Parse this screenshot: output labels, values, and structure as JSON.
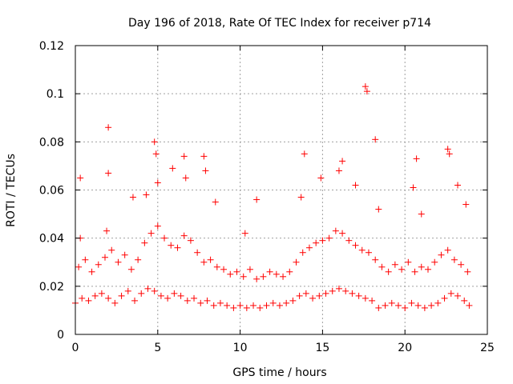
{
  "chart_data": {
    "type": "scatter",
    "title": "Day 196 of 2018, Rate Of TEC Index for receiver p714",
    "xlabel": "GPS time / hours",
    "ylabel": "ROTI / TECUs",
    "xlim": [
      0,
      25
    ],
    "ylim": [
      0,
      0.12
    ],
    "grid": true,
    "marker": "+",
    "color": "#ff0000",
    "x_ticks": [
      0,
      5,
      10,
      15,
      20,
      25
    ],
    "x_tick_labels": [
      "0",
      "5",
      "10",
      "15",
      "20",
      "25"
    ],
    "y_ticks": [
      0,
      0.02,
      0.04,
      0.06,
      0.08,
      0.1,
      0.12
    ],
    "y_tick_labels": [
      "0",
      "0.02",
      "0.04",
      "0.06",
      "0.08",
      "0.1",
      "0.12"
    ],
    "series": [
      {
        "name": "ROTI",
        "x": [
          0.0,
          0.4,
          0.8,
          1.2,
          1.6,
          2.0,
          2.4,
          2.8,
          3.2,
          3.6,
          4.0,
          4.4,
          4.8,
          5.2,
          5.6,
          6.0,
          6.4,
          6.8,
          7.2,
          7.6,
          8.0,
          8.4,
          8.8,
          9.2,
          9.6,
          10.0,
          10.4,
          10.8,
          11.2,
          11.6,
          12.0,
          12.4,
          12.8,
          13.2,
          13.6,
          14.0,
          14.4,
          14.8,
          15.2,
          15.6,
          16.0,
          16.4,
          16.8,
          17.2,
          17.6,
          18.0,
          18.4,
          18.8,
          19.2,
          19.6,
          20.0,
          20.4,
          20.8,
          21.2,
          21.6,
          22.0,
          22.4,
          22.8,
          23.2,
          23.6,
          23.9,
          0.2,
          0.6,
          1.0,
          1.4,
          1.8,
          2.2,
          2.6,
          3.0,
          3.4,
          3.8,
          4.2,
          4.6,
          5.0,
          5.4,
          5.8,
          6.2,
          6.6,
          7.0,
          7.4,
          7.8,
          8.2,
          8.6,
          9.0,
          9.4,
          9.8,
          10.2,
          10.6,
          11.0,
          11.4,
          11.8,
          12.2,
          12.6,
          13.0,
          13.4,
          13.8,
          14.2,
          14.6,
          15.0,
          15.4,
          15.8,
          16.2,
          16.6,
          17.0,
          17.4,
          17.8,
          18.2,
          18.6,
          19.0,
          19.4,
          19.8,
          20.2,
          20.6,
          21.0,
          21.4,
          21.8,
          22.2,
          22.6,
          23.0,
          23.4,
          23.8,
          0.3,
          2.0,
          2.0,
          4.8,
          4.9,
          5.9,
          6.6,
          7.8,
          7.9,
          13.9,
          16.2,
          17.6,
          17.7,
          18.2,
          20.7,
          22.6,
          22.7,
          23.2,
          0.3,
          1.9,
          3.5,
          4.3,
          5.0,
          6.7,
          8.5,
          10.3,
          11.0,
          13.7,
          14.9,
          16.0,
          17.0,
          18.4,
          20.5,
          21.0,
          23.7
        ],
        "y": [
          0.013,
          0.015,
          0.014,
          0.016,
          0.017,
          0.015,
          0.013,
          0.016,
          0.018,
          0.014,
          0.017,
          0.019,
          0.018,
          0.016,
          0.015,
          0.017,
          0.016,
          0.014,
          0.015,
          0.013,
          0.014,
          0.012,
          0.013,
          0.012,
          0.011,
          0.012,
          0.011,
          0.012,
          0.011,
          0.012,
          0.013,
          0.012,
          0.013,
          0.014,
          0.016,
          0.017,
          0.015,
          0.016,
          0.017,
          0.018,
          0.019,
          0.018,
          0.017,
          0.016,
          0.015,
          0.014,
          0.011,
          0.012,
          0.013,
          0.012,
          0.011,
          0.013,
          0.012,
          0.011,
          0.012,
          0.013,
          0.015,
          0.017,
          0.016,
          0.014,
          0.012,
          0.028,
          0.031,
          0.026,
          0.029,
          0.032,
          0.035,
          0.03,
          0.033,
          0.027,
          0.031,
          0.038,
          0.042,
          0.045,
          0.04,
          0.037,
          0.036,
          0.041,
          0.039,
          0.034,
          0.03,
          0.031,
          0.028,
          0.027,
          0.025,
          0.026,
          0.024,
          0.027,
          0.023,
          0.024,
          0.026,
          0.025,
          0.024,
          0.026,
          0.03,
          0.034,
          0.036,
          0.038,
          0.039,
          0.04,
          0.043,
          0.042,
          0.039,
          0.037,
          0.035,
          0.034,
          0.031,
          0.028,
          0.026,
          0.029,
          0.027,
          0.03,
          0.026,
          0.028,
          0.027,
          0.03,
          0.033,
          0.035,
          0.031,
          0.029,
          0.026,
          0.065,
          0.086,
          0.067,
          0.08,
          0.075,
          0.069,
          0.074,
          0.074,
          0.068,
          0.075,
          0.072,
          0.103,
          0.101,
          0.081,
          0.073,
          0.077,
          0.075,
          0.062,
          0.04,
          0.043,
          0.057,
          0.058,
          0.063,
          0.065,
          0.055,
          0.042,
          0.056,
          0.057,
          0.065,
          0.068,
          0.062,
          0.052,
          0.061,
          0.05,
          0.054
        ]
      }
    ]
  }
}
